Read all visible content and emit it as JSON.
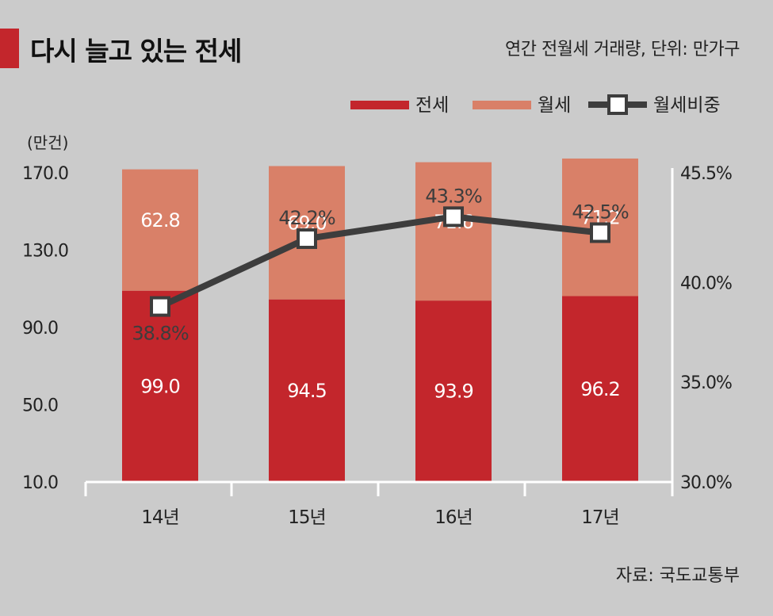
{
  "title": "다시 늘고 있는 전세",
  "subtitle": "연간 전월세 거래량, 단위: 만가구",
  "source": "자료: 국도교통부",
  "colors": {
    "jeonse": "#c3262c",
    "wolse": "#d98068",
    "line": "#3d3d3d",
    "background": "#cbcbcb",
    "accent": "#c3262c"
  },
  "chart_data": {
    "type": "bar",
    "stacked": true,
    "categories": [
      "14년",
      "15년",
      "16년",
      "17년"
    ],
    "series": [
      {
        "name": "전세",
        "values": [
          99.0,
          94.5,
          93.9,
          96.2
        ]
      },
      {
        "name": "월세",
        "values": [
          62.8,
          69.0,
          71.6,
          71.2
        ]
      }
    ],
    "line_series": {
      "name": "월세비중",
      "values": [
        38.8,
        42.2,
        43.3,
        42.5
      ],
      "labels": [
        "38.8%",
        "42.2%",
        "43.3%",
        "42.5%"
      ]
    },
    "bar_labels": {
      "jeonse": [
        "99.0",
        "94.5",
        "93.9",
        "96.2"
      ],
      "wolse": [
        "62.8",
        "69.0",
        "71.6",
        "71.2"
      ]
    },
    "ylabel": "(만건)",
    "ylim": [
      10,
      170
    ],
    "yticks": [
      "170.0",
      "130.0",
      "90.0",
      "50.0",
      "10.0"
    ],
    "yticks_values": [
      170,
      130,
      90,
      50,
      10
    ],
    "y2lim": [
      30.0,
      45.5
    ],
    "y2ticks": [
      "45.5%",
      "40.0%",
      "35.0%",
      "30.0%"
    ],
    "y2ticks_values": [
      45.5,
      40.0,
      35.0,
      30.0
    ],
    "legend": [
      "전세",
      "월세",
      "월세비중"
    ],
    "legend_position": "top-right",
    "grid": false
  }
}
